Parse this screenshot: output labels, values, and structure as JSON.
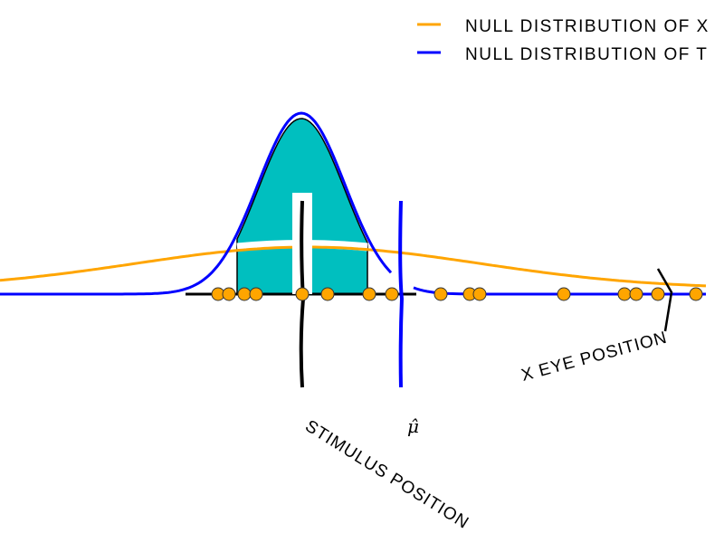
{
  "legend": {
    "items": [
      {
        "label": "Null distribution of x",
        "color": "#FFA500"
      },
      {
        "label": "Null distribution of t",
        "color": "#0000FF"
      }
    ],
    "placement": "top-right"
  },
  "annotations": {
    "stimulus": "stimulus position",
    "mu_hat": "μ̂",
    "eye": "x eye position"
  },
  "colors": {
    "fill": "#00BFBF",
    "sample_dots": "#FFA500",
    "stimulus_line": "#000000",
    "mu_line": "#0000FF"
  },
  "samples_count": 16
}
